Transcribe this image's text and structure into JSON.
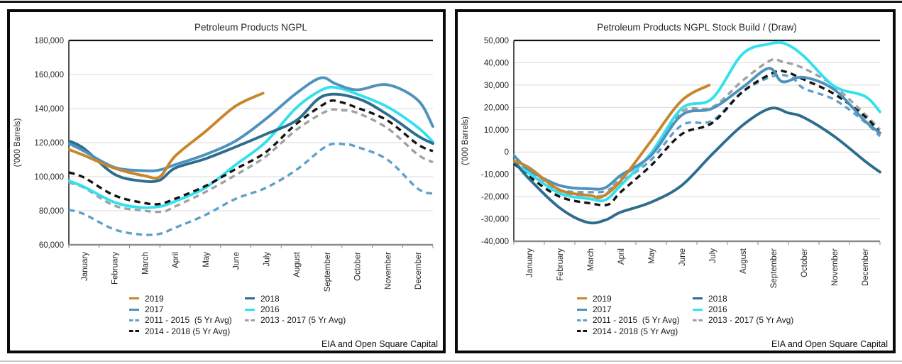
{
  "shared": {
    "series_styles": [
      {
        "name": "2019",
        "color": "#C8862B",
        "style": "solid"
      },
      {
        "name": "2018",
        "color": "#2E6D8E",
        "style": "solid"
      },
      {
        "name": "2017",
        "color": "#4E92BD",
        "style": "solid"
      },
      {
        "name": "2016",
        "color": "#35E0EE",
        "style": "solid"
      },
      {
        "name": "2011 - 2015  (5 Yr Avg)",
        "color": "#5FA0CB",
        "style": "dashed"
      },
      {
        "name": "2013 - 2017 (5 Yr Avg)",
        "color": "#A0A0A0",
        "style": "dashed"
      },
      {
        "name": "2014 - 2018 (5 Yr Avg)",
        "color": "#141414",
        "style": "dashed"
      }
    ],
    "legend_columns": [
      [
        0,
        2,
        4,
        6
      ],
      [
        1,
        3,
        5
      ]
    ]
  },
  "panels": [
    {
      "title": "Petroleum Products NGPL",
      "y_axis": {
        "label": "('000 Barrels)",
        "min": 60000,
        "max": 180000,
        "step": 20000
      },
      "source": "EIA and Open Square Capital"
    },
    {
      "title": "Petroleum Products NGPL Stock Build / (Draw)",
      "y_axis": {
        "label": "('000 Barrels)",
        "min": -40000,
        "max": 50000,
        "step": 10000
      },
      "source": "EIA and Open Square Capital"
    }
  ],
  "chart_data": [
    {
      "type": "line",
      "title": "Petroleum Products NGPL",
      "ylabel": "('000 Barrels)",
      "ylim": [
        60000,
        180000
      ],
      "grid": true,
      "legend_position": "bottom",
      "x_categories": [
        "January",
        "February",
        "March",
        "April",
        "May",
        "June",
        "July",
        "August",
        "September",
        "October",
        "November",
        "December"
      ],
      "series": [
        {
          "name": "2019",
          "points": [
            [
              -0.5,
              116000
            ],
            [
              0,
              112500
            ],
            [
              1,
              105000
            ],
            [
              2,
              100500
            ],
            [
              2.5,
              100000
            ],
            [
              3,
              112000
            ],
            [
              4,
              126500
            ],
            [
              5,
              141500
            ],
            [
              5.9,
              149000
            ]
          ]
        },
        {
          "name": "2018",
          "points": [
            [
              -0.5,
              121000
            ],
            [
              0,
              116500
            ],
            [
              1,
              101500
            ],
            [
              1.9,
              97500
            ],
            [
              2.5,
              98000
            ],
            [
              3,
              105000
            ],
            [
              4,
              110500
            ],
            [
              5,
              117500
            ],
            [
              6,
              125000
            ],
            [
              7,
              133000
            ],
            [
              7.9,
              147500
            ],
            [
              9,
              146000
            ],
            [
              10,
              136500
            ],
            [
              11,
              124000
            ],
            [
              11.5,
              119500
            ]
          ]
        },
        {
          "name": "2017",
          "points": [
            [
              -0.5,
              119500
            ],
            [
              0,
              115000
            ],
            [
              1,
              105500
            ],
            [
              2,
              103500
            ],
            [
              2.5,
              104000
            ],
            [
              3,
              107000
            ],
            [
              4,
              113000
            ],
            [
              5,
              121000
            ],
            [
              6,
              134000
            ],
            [
              7,
              149000
            ],
            [
              7.8,
              158000
            ],
            [
              8.3,
              154500
            ],
            [
              9,
              151000
            ],
            [
              10,
              154000
            ],
            [
              11,
              145000
            ],
            [
              11.5,
              129500
            ]
          ]
        },
        {
          "name": "2016",
          "points": [
            [
              -0.5,
              97500
            ],
            [
              0,
              94000
            ],
            [
              1,
              85000
            ],
            [
              1.8,
              82000
            ],
            [
              2.5,
              82500
            ],
            [
              3,
              85500
            ],
            [
              4,
              93500
            ],
            [
              5,
              107000
            ],
            [
              6,
              120500
            ],
            [
              7,
              140500
            ],
            [
              7.9,
              151500
            ],
            [
              8.4,
              152000
            ],
            [
              9,
              148500
            ],
            [
              10,
              141000
            ],
            [
              11,
              129000
            ],
            [
              11.5,
              120500
            ]
          ]
        },
        {
          "name": "2011 - 2015  (5 Yr Avg)",
          "points": [
            [
              -0.5,
              80500
            ],
            [
              0,
              78000
            ],
            [
              1,
              69000
            ],
            [
              1.9,
              66000
            ],
            [
              2.5,
              66500
            ],
            [
              3,
              70000
            ],
            [
              4,
              77500
            ],
            [
              5,
              87000
            ],
            [
              6,
              93500
            ],
            [
              7,
              104000
            ],
            [
              8,
              118000
            ],
            [
              8.6,
              119000
            ],
            [
              9,
              117500
            ],
            [
              10,
              110000
            ],
            [
              11,
              93000
            ],
            [
              11.5,
              90000
            ]
          ]
        },
        {
          "name": "2013 - 2017 (5 Yr Avg)",
          "points": [
            [
              -0.5,
              96500
            ],
            [
              0,
              93500
            ],
            [
              1,
              83000
            ],
            [
              2,
              80000
            ],
            [
              2.6,
              79500
            ],
            [
              3,
              82500
            ],
            [
              4,
              91000
            ],
            [
              5,
              101000
            ],
            [
              6,
              112000
            ],
            [
              7,
              127500
            ],
            [
              8,
              138500
            ],
            [
              8.5,
              139000
            ],
            [
              9,
              137500
            ],
            [
              10,
              128500
            ],
            [
              11,
              113000
            ],
            [
              11.5,
              108500
            ]
          ]
        },
        {
          "name": "2014 - 2018 (5 Yr Avg)",
          "points": [
            [
              -0.5,
              102500
            ],
            [
              0,
              99500
            ],
            [
              1,
              89000
            ],
            [
              2,
              84500
            ],
            [
              2.5,
              84000
            ],
            [
              3,
              87000
            ],
            [
              4,
              94500
            ],
            [
              5,
              104500
            ],
            [
              6,
              114500
            ],
            [
              7,
              131000
            ],
            [
              8,
              143500
            ],
            [
              8.4,
              144000
            ],
            [
              9,
              140500
            ],
            [
              10,
              133000
            ],
            [
              11,
              119000
            ],
            [
              11.5,
              115000
            ]
          ]
        }
      ]
    },
    {
      "type": "line",
      "title": "Petroleum Products NGPL Stock Build / (Draw)",
      "ylabel": "('000 Barrels)",
      "ylim": [
        -40000,
        50000
      ],
      "grid": true,
      "legend_position": "bottom",
      "x_categories": [
        "January",
        "February",
        "March",
        "April",
        "May",
        "June",
        "July",
        "August",
        "September",
        "October",
        "November",
        "December"
      ],
      "series": [
        {
          "name": "2019",
          "points": [
            [
              -0.5,
              -4000
            ],
            [
              0,
              -7000
            ],
            [
              1,
              -17000
            ],
            [
              2,
              -19500
            ],
            [
              2.4,
              -20000
            ],
            [
              3,
              -13000
            ],
            [
              4,
              5000
            ],
            [
              5,
              23000
            ],
            [
              5.9,
              30000
            ]
          ]
        },
        {
          "name": "2018",
          "points": [
            [
              -0.5,
              -4000
            ],
            [
              0,
              -12000
            ],
            [
              1,
              -25000
            ],
            [
              1.9,
              -31500
            ],
            [
              2.5,
              -30500
            ],
            [
              3,
              -27000
            ],
            [
              4,
              -22500
            ],
            [
              5,
              -15000
            ],
            [
              6,
              -1000
            ],
            [
              7,
              12000
            ],
            [
              7.9,
              19500
            ],
            [
              8.5,
              17500
            ],
            [
              9,
              15500
            ],
            [
              10,
              7000
            ],
            [
              11,
              -4000
            ],
            [
              11.5,
              -9000
            ]
          ]
        },
        {
          "name": "2017",
          "points": [
            [
              -0.5,
              -1500
            ],
            [
              0,
              -8000
            ],
            [
              1,
              -15000
            ],
            [
              2,
              -16500
            ],
            [
              2.5,
              -16000
            ],
            [
              3,
              -10500
            ],
            [
              4,
              -1500
            ],
            [
              5,
              16500
            ],
            [
              6,
              19500
            ],
            [
              7,
              29000
            ],
            [
              7.85,
              37500
            ],
            [
              8.3,
              31500
            ],
            [
              9,
              33500
            ],
            [
              10,
              28000
            ],
            [
              11,
              14000
            ],
            [
              11.5,
              8500
            ]
          ]
        },
        {
          "name": "2016",
          "points": [
            [
              -0.5,
              -5000
            ],
            [
              0,
              -9500
            ],
            [
              1,
              -18500
            ],
            [
              2,
              -21000
            ],
            [
              2.5,
              -21500
            ],
            [
              3,
              -15000
            ],
            [
              4,
              -500
            ],
            [
              5,
              19500
            ],
            [
              6,
              24000
            ],
            [
              7,
              44000
            ],
            [
              7.9,
              48500
            ],
            [
              8.4,
              48500
            ],
            [
              9,
              43000
            ],
            [
              10,
              29500
            ],
            [
              11,
              25000
            ],
            [
              11.5,
              18000
            ]
          ]
        },
        {
          "name": "2011 - 2015  (5 Yr Avg)",
          "points": [
            [
              -0.5,
              -4500
            ],
            [
              0,
              -10000
            ],
            [
              1,
              -17000
            ],
            [
              2,
              -18000
            ],
            [
              2.5,
              -17500
            ],
            [
              3,
              -13500
            ],
            [
              4,
              -3500
            ],
            [
              5,
              12000
            ],
            [
              6,
              14000
            ],
            [
              7,
              27000
            ],
            [
              8,
              34000
            ],
            [
              8.6,
              33500
            ],
            [
              9,
              28500
            ],
            [
              10,
              23500
            ],
            [
              11,
              13500
            ],
            [
              11.5,
              7000
            ]
          ]
        },
        {
          "name": "2013 - 2017 (5 Yr Avg)",
          "points": [
            [
              -0.5,
              -4000
            ],
            [
              0,
              -9000
            ],
            [
              1,
              -17500
            ],
            [
              2,
              -19500
            ],
            [
              2.5,
              -19000
            ],
            [
              3,
              -11500
            ],
            [
              4,
              -1500
            ],
            [
              5,
              18000
            ],
            [
              6,
              20000
            ],
            [
              7,
              32000
            ],
            [
              7.9,
              41000
            ],
            [
              8.3,
              40500
            ],
            [
              9,
              37500
            ],
            [
              10,
              29500
            ],
            [
              11,
              17000
            ],
            [
              11.5,
              10000
            ]
          ]
        },
        {
          "name": "2014 - 2018 (5 Yr Avg)",
          "points": [
            [
              -0.5,
              -5000
            ],
            [
              0,
              -11000
            ],
            [
              1,
              -20000
            ],
            [
              2,
              -23000
            ],
            [
              2.6,
              -23500
            ],
            [
              3,
              -18000
            ],
            [
              4,
              -6000
            ],
            [
              5,
              8000
            ],
            [
              6,
              13000
            ],
            [
              7,
              27000
            ],
            [
              8,
              35500
            ],
            [
              8.4,
              36000
            ],
            [
              9,
              32500
            ],
            [
              10,
              26000
            ],
            [
              11,
              16000
            ],
            [
              11.5,
              8500
            ]
          ]
        }
      ]
    }
  ]
}
